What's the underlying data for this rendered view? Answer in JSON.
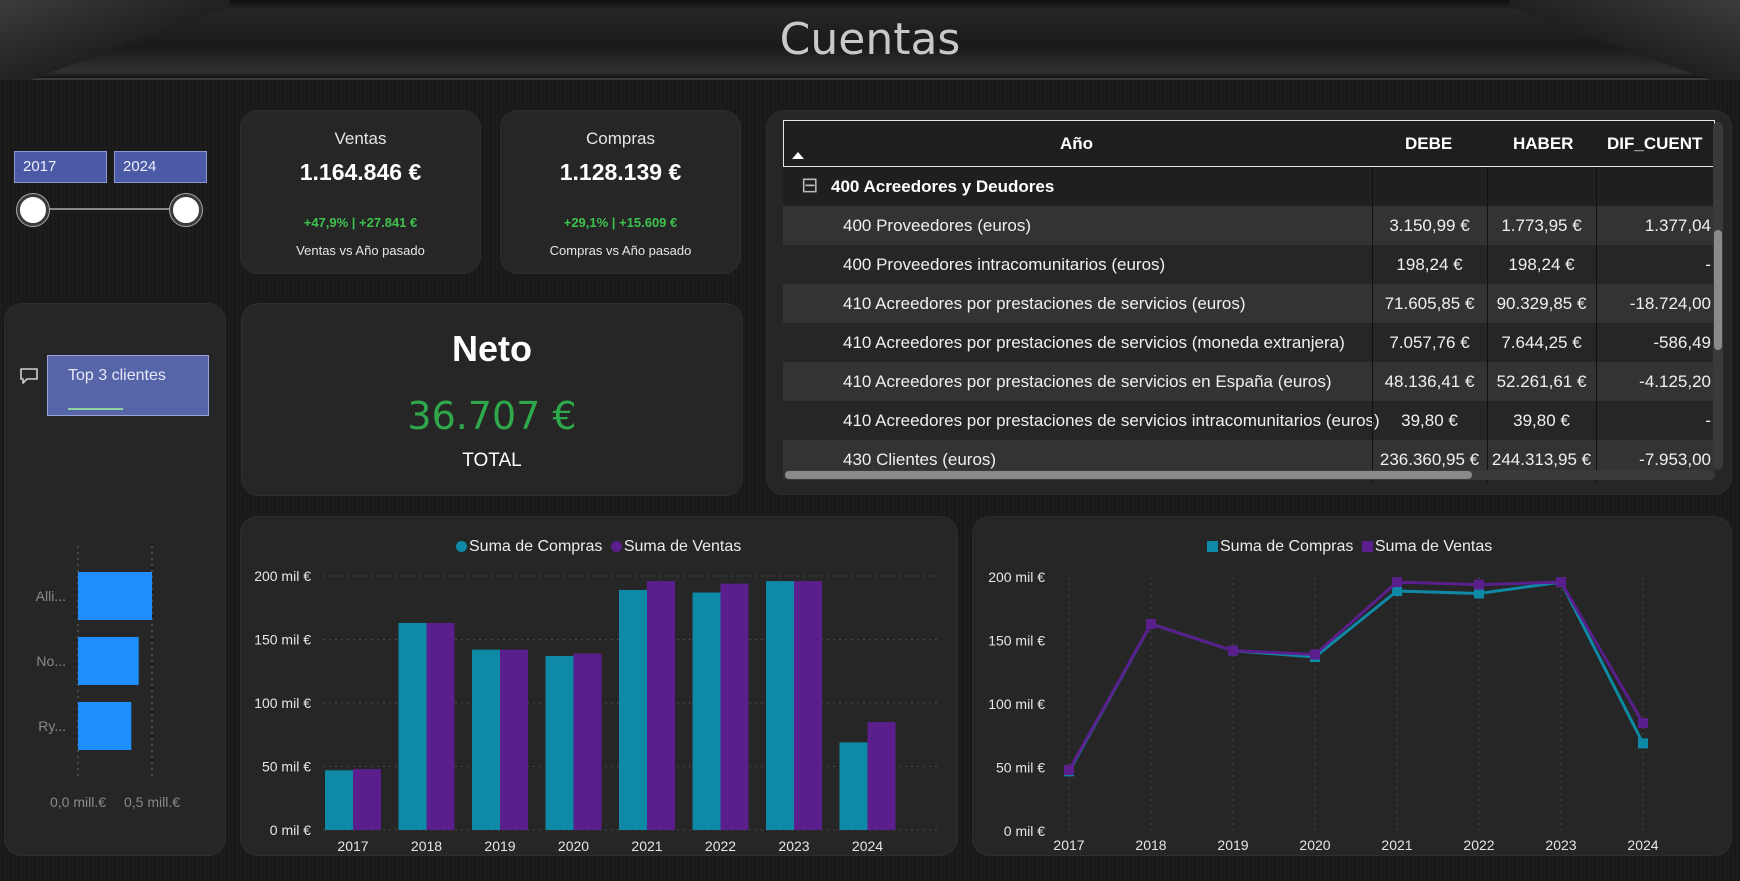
{
  "page": {
    "title": "Cuentas"
  },
  "colors": {
    "compras": "#0e8aa6",
    "ventas": "#5a1f8c",
    "positive": "#3ec24e",
    "top3_bar": "#1f8fff",
    "slicer": "#4a5aa4"
  },
  "date_slicer": {
    "start": "2017",
    "end": "2024",
    "start_year_value": 2017,
    "end_year_value": 2024
  },
  "kpis": {
    "ventas": {
      "label": "Ventas",
      "value": "1.164.846 €",
      "delta": "+47,9%  |  +27.841 €",
      "sub": "Ventas vs Año pasado"
    },
    "compras": {
      "label": "Compras",
      "value": "1.128.139 €",
      "delta": "+29,1%  |  +15.609 €",
      "sub": "Compras vs Año pasado"
    }
  },
  "neto": {
    "label": "Neto",
    "value": "36.707 €",
    "sub": "TOTAL"
  },
  "top3": {
    "button_label": "Top 3 clientes",
    "icon": "comment-icon",
    "chart_data": {
      "type": "bar",
      "orientation": "horizontal",
      "categories": [
        "Alli...",
        "No...",
        "Ry..."
      ],
      "values": [
        0.5,
        0.41,
        0.36
      ],
      "xtick_labels": [
        "0,0 mill.€",
        "0,5 mill.€"
      ],
      "xlim": [
        0,
        0.5
      ]
    }
  },
  "table": {
    "headers": {
      "year": "Año",
      "debe": "DEBE",
      "haber": "HABER",
      "dif": "DIF_CUENT"
    },
    "group": {
      "toggle": "⊟",
      "label": "400 Acreedores y Deudores"
    },
    "rows": [
      {
        "name": "400 Proveedores (euros)",
        "debe": "3.150,99 €",
        "haber": "1.773,95 €",
        "dif": "1.377,04"
      },
      {
        "name": "400 Proveedores intracomunitarios (euros)",
        "debe": "198,24 €",
        "haber": "198,24 €",
        "dif": "-"
      },
      {
        "name": "410 Acreedores por prestaciones de servicios (euros)",
        "debe": "71.605,85 €",
        "haber": "90.329,85 €",
        "dif": "-18.724,00"
      },
      {
        "name": "410 Acreedores por prestaciones de servicios (moneda extranjera)",
        "debe": "7.057,76 €",
        "haber": "7.644,25 €",
        "dif": "-586,49"
      },
      {
        "name": "410 Acreedores por prestaciones de servicios en España (euros)",
        "debe": "48.136,41 €",
        "haber": "52.261,61 €",
        "dif": "-4.125,20"
      },
      {
        "name": "410 Acreedores por prestaciones de servicios intracomunitarios (euros)",
        "debe": "39,80 €",
        "haber": "39,80 €",
        "dif": "-"
      },
      {
        "name": "430 Clientes (euros)",
        "debe": "236.360,95 €",
        "haber": "244.313,95 €",
        "dif": "-7.953,00"
      }
    ]
  },
  "chart_data": [
    {
      "type": "bar",
      "categories": [
        "2017",
        "2018",
        "2019",
        "2020",
        "2021",
        "2022",
        "2023",
        "2024"
      ],
      "series": [
        {
          "name": "Suma de Compras",
          "values": [
            47,
            163,
            142,
            137,
            189,
            187,
            196,
            69
          ]
        },
        {
          "name": "Suma de Ventas",
          "values": [
            48,
            163,
            142,
            139,
            196,
            194,
            196,
            85
          ]
        }
      ],
      "yticks": [
        "0 mil €",
        "50 mil €",
        "100 mil €",
        "150 mil €",
        "200 mil €"
      ],
      "ylim": [
        0,
        200
      ],
      "grid": true,
      "legend": "top-center"
    },
    {
      "type": "line",
      "categories": [
        "2017",
        "2018",
        "2019",
        "2020",
        "2021",
        "2022",
        "2023",
        "2024"
      ],
      "series": [
        {
          "name": "Suma de Compras",
          "values": [
            47,
            163,
            142,
            137,
            189,
            187,
            196,
            69
          ]
        },
        {
          "name": "Suma de Ventas",
          "values": [
            48,
            163,
            142,
            139,
            196,
            194,
            196,
            85
          ]
        }
      ],
      "yticks": [
        "0 mil €",
        "50 mil €",
        "100 mil €",
        "150 mil €",
        "200 mil €"
      ],
      "ylim": [
        0,
        200
      ],
      "grid": true,
      "legend": "top-center"
    }
  ]
}
